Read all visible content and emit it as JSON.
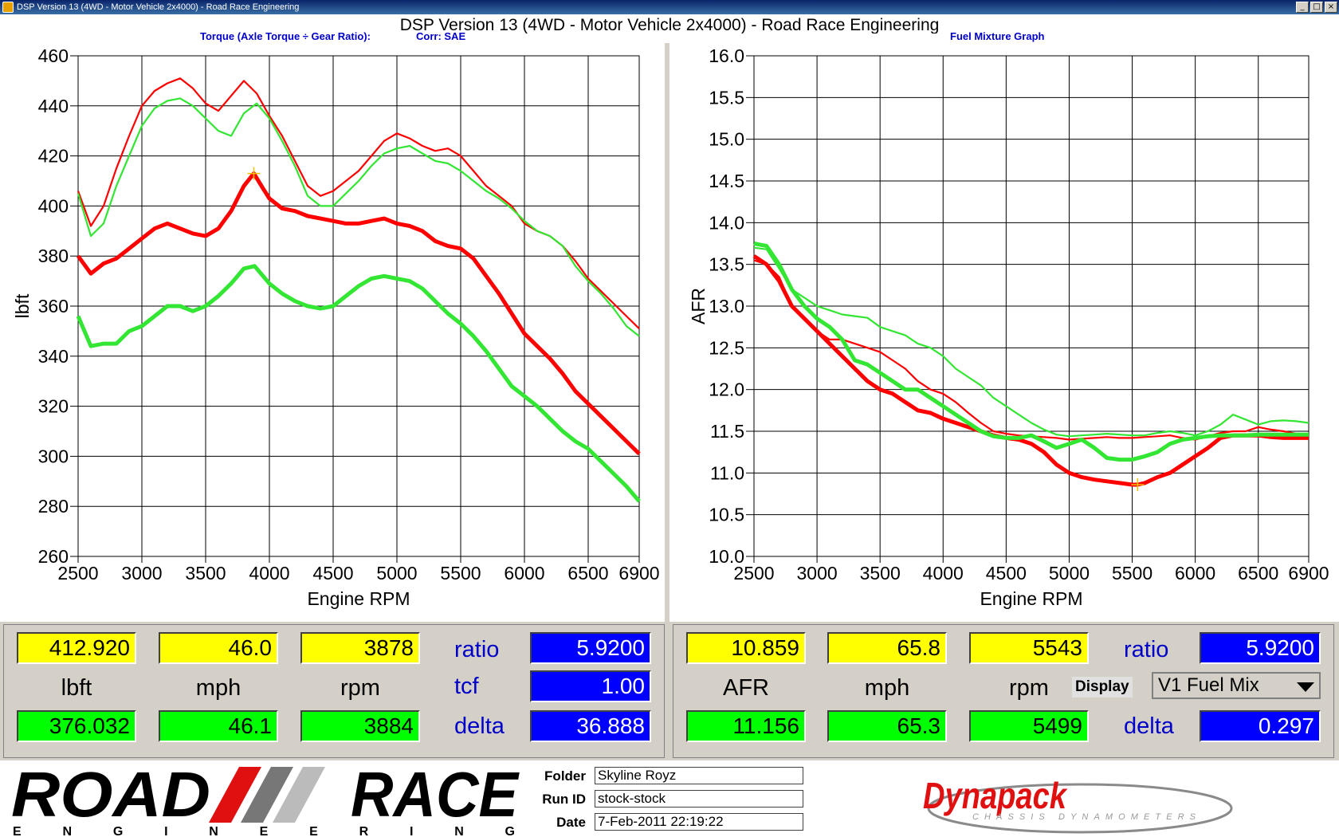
{
  "window": {
    "title": "DSP Version 13 (4WD - Motor Vehicle 2x4000) - Road Race Engineering",
    "controls": [
      "_",
      "□",
      "×"
    ]
  },
  "header": {
    "main_title": "DSP Version 13 (4WD - Motor Vehicle 2x4000) - Road Race Engineering",
    "left_subtitle": "Torque (Axle Torque ÷ Gear Ratio):",
    "left_corr": "Corr: SAE",
    "right_subtitle": "Fuel Mixture Graph"
  },
  "colors": {
    "run1": "#ff0000",
    "run2": "#33e633",
    "value_yellow": "#ffff00",
    "value_green": "#00ff00",
    "value_blue": "#0000ff",
    "label_blue": "#0000c8"
  },
  "chart_data": [
    {
      "type": "line",
      "ylabel": "lbft",
      "xlabel": "Engine RPM",
      "xlim": [
        2500,
        6900
      ],
      "ylim": [
        260,
        460
      ],
      "xticks": [
        "2500",
        "3000",
        "3500",
        "4000",
        "4500",
        "5000",
        "5500",
        "6000",
        "6500",
        "6900"
      ],
      "yticks": [
        "260",
        "280",
        "300",
        "320",
        "340",
        "360",
        "380",
        "400",
        "420",
        "440",
        "460"
      ],
      "grid": true,
      "series": [
        {
          "color": "red",
          "width": "thin",
          "x": [
            2500,
            2600,
            2700,
            2800,
            2900,
            3000,
            3100,
            3200,
            3300,
            3400,
            3500,
            3600,
            3700,
            3800,
            3900,
            4000,
            4100,
            4200,
            4300,
            4400,
            4500,
            4600,
            4700,
            4800,
            4900,
            5000,
            5100,
            5200,
            5300,
            5400,
            5500,
            5600,
            5700,
            5800,
            5900,
            6000,
            6100,
            6200,
            6300,
            6400,
            6500,
            6600,
            6700,
            6800,
            6900
          ],
          "y": [
            406,
            392,
            400,
            415,
            428,
            440,
            446,
            449,
            451,
            447,
            441,
            438,
            444,
            450,
            445,
            436,
            428,
            418,
            408,
            404,
            406,
            410,
            414,
            420,
            426,
            429,
            427,
            424,
            422,
            423,
            420,
            414,
            408,
            404,
            400,
            393,
            390,
            388,
            384,
            378,
            371,
            366,
            361,
            356,
            351
          ]
        },
        {
          "color": "green",
          "width": "thin",
          "x": [
            2500,
            2600,
            2700,
            2800,
            2900,
            3000,
            3100,
            3200,
            3300,
            3400,
            3500,
            3600,
            3700,
            3800,
            3900,
            4000,
            4100,
            4200,
            4300,
            4400,
            4500,
            4600,
            4700,
            4800,
            4900,
            5000,
            5100,
            5200,
            5300,
            5400,
            5500,
            5600,
            5700,
            5800,
            5900,
            6000,
            6100,
            6200,
            6300,
            6400,
            6500,
            6600,
            6700,
            6800,
            6900
          ],
          "y": [
            405,
            388,
            393,
            408,
            420,
            432,
            439,
            442,
            443,
            440,
            435,
            430,
            428,
            437,
            441,
            435,
            426,
            416,
            404,
            400,
            400,
            405,
            410,
            416,
            421,
            423,
            424,
            421,
            418,
            417,
            414,
            410,
            406,
            403,
            399,
            394,
            390,
            388,
            384,
            376,
            370,
            365,
            359,
            352,
            348
          ]
        },
        {
          "color": "red",
          "width": "thick",
          "x": [
            2500,
            2600,
            2700,
            2800,
            2900,
            3000,
            3100,
            3200,
            3300,
            3400,
            3500,
            3600,
            3700,
            3800,
            3878,
            3950,
            4000,
            4100,
            4200,
            4300,
            4400,
            4500,
            4600,
            4700,
            4800,
            4900,
            5000,
            5100,
            5200,
            5300,
            5400,
            5500,
            5600,
            5700,
            5800,
            5900,
            6000,
            6100,
            6200,
            6300,
            6400,
            6500,
            6600,
            6700,
            6800,
            6900
          ],
          "y": [
            380,
            373,
            377,
            379,
            383,
            387,
            391,
            393,
            391,
            389,
            388,
            391,
            398,
            408,
            413,
            407,
            403,
            399,
            398,
            396,
            395,
            394,
            393,
            393,
            394,
            395,
            393,
            392,
            390,
            386,
            384,
            383,
            379,
            372,
            365,
            357,
            349,
            344,
            339,
            333,
            326,
            321,
            316,
            311,
            306,
            301
          ]
        },
        {
          "color": "green",
          "width": "thick",
          "x": [
            2500,
            2600,
            2700,
            2800,
            2900,
            3000,
            3100,
            3200,
            3300,
            3400,
            3500,
            3600,
            3700,
            3800,
            3884,
            3950,
            4000,
            4100,
            4200,
            4300,
            4400,
            4500,
            4600,
            4700,
            4800,
            4900,
            5000,
            5100,
            5200,
            5300,
            5400,
            5500,
            5600,
            5700,
            5800,
            5900,
            6000,
            6100,
            6200,
            6300,
            6400,
            6500,
            6600,
            6700,
            6800,
            6900
          ],
          "y": [
            356,
            344,
            345,
            345,
            350,
            352,
            356,
            360,
            360,
            358,
            360,
            364,
            369,
            375,
            376,
            372,
            369,
            365,
            362,
            360,
            359,
            360,
            364,
            368,
            371,
            372,
            371,
            370,
            367,
            362,
            357,
            353,
            348,
            342,
            335,
            328,
            324,
            320,
            315,
            310,
            306,
            303,
            298,
            293,
            288,
            282
          ]
        }
      ],
      "cursor": {
        "x": 3878
      }
    },
    {
      "type": "line",
      "ylabel": "AFR",
      "xlabel": "Engine RPM",
      "xlim": [
        2500,
        6900
      ],
      "ylim": [
        10.0,
        16.0
      ],
      "xticks": [
        "2500",
        "3000",
        "3500",
        "4000",
        "4500",
        "5000",
        "5500",
        "6000",
        "6500",
        "6900"
      ],
      "yticks": [
        "10.0",
        "10.5",
        "11.0",
        "11.5",
        "12.0",
        "12.5",
        "13.0",
        "13.5",
        "14.0",
        "14.5",
        "15.0",
        "15.5",
        "16.0"
      ],
      "grid": true,
      "series": [
        {
          "color": "red",
          "width": "thin",
          "x": [
            2500,
            2600,
            2700,
            2800,
            2900,
            3000,
            3100,
            3200,
            3300,
            3400,
            3500,
            3600,
            3700,
            3800,
            3900,
            4000,
            4100,
            4200,
            4300,
            4400,
            4500,
            4600,
            4700,
            4800,
            4900,
            5000,
            5100,
            5200,
            5300,
            5400,
            5500,
            5600,
            5700,
            5800,
            5900,
            6000,
            6100,
            6200,
            6300,
            6400,
            6500,
            6600,
            6700,
            6800,
            6900
          ],
          "y": [
            13.55,
            13.5,
            13.35,
            13.0,
            12.85,
            12.7,
            12.6,
            12.6,
            12.55,
            12.5,
            12.45,
            12.35,
            12.25,
            12.1,
            12.0,
            11.95,
            11.85,
            11.72,
            11.6,
            11.5,
            11.47,
            11.45,
            11.44,
            11.43,
            11.42,
            11.4,
            11.41,
            11.42,
            11.43,
            11.42,
            11.42,
            11.43,
            11.44,
            11.45,
            11.42,
            11.4,
            11.44,
            11.48,
            11.5,
            11.5,
            11.55,
            11.52,
            11.5,
            11.47,
            11.45
          ]
        },
        {
          "color": "green",
          "width": "thin",
          "x": [
            2500,
            2600,
            2700,
            2800,
            2900,
            3000,
            3100,
            3200,
            3300,
            3400,
            3500,
            3600,
            3700,
            3800,
            3900,
            4000,
            4100,
            4200,
            4300,
            4400,
            4500,
            4600,
            4700,
            4800,
            4900,
            5000,
            5100,
            5200,
            5300,
            5400,
            5500,
            5600,
            5700,
            5800,
            5900,
            6000,
            6100,
            6200,
            6300,
            6400,
            6500,
            6600,
            6700,
            6800,
            6900
          ],
          "y": [
            13.7,
            13.68,
            13.45,
            13.2,
            13.1,
            13.0,
            12.95,
            12.9,
            12.88,
            12.86,
            12.75,
            12.7,
            12.65,
            12.55,
            12.5,
            12.4,
            12.25,
            12.15,
            12.05,
            11.9,
            11.8,
            11.7,
            11.6,
            11.52,
            11.46,
            11.44,
            11.45,
            11.46,
            11.47,
            11.46,
            11.45,
            11.45,
            11.48,
            11.5,
            11.48,
            11.45,
            11.5,
            11.58,
            11.7,
            11.64,
            11.58,
            11.62,
            11.63,
            11.62,
            11.6
          ]
        },
        {
          "color": "red",
          "width": "thick",
          "x": [
            2500,
            2600,
            2700,
            2800,
            2900,
            3000,
            3100,
            3200,
            3300,
            3400,
            3500,
            3600,
            3700,
            3800,
            3900,
            4000,
            4100,
            4200,
            4300,
            4400,
            4500,
            4600,
            4700,
            4800,
            4900,
            5000,
            5100,
            5200,
            5300,
            5400,
            5500,
            5543,
            5600,
            5700,
            5800,
            5900,
            6000,
            6100,
            6200,
            6300,
            6400,
            6500,
            6600,
            6700,
            6800,
            6900
          ],
          "y": [
            13.6,
            13.5,
            13.3,
            13.0,
            12.85,
            12.7,
            12.55,
            12.4,
            12.25,
            12.1,
            12.0,
            11.95,
            11.85,
            11.75,
            11.72,
            11.65,
            11.6,
            11.55,
            11.5,
            11.45,
            11.42,
            11.4,
            11.35,
            11.25,
            11.1,
            11.0,
            10.95,
            10.92,
            10.9,
            10.88,
            10.86,
            10.86,
            10.88,
            10.95,
            11.0,
            11.1,
            11.2,
            11.3,
            11.42,
            11.45,
            11.45,
            11.45,
            11.43,
            11.42,
            11.42,
            11.42
          ]
        },
        {
          "color": "green",
          "width": "thick",
          "x": [
            2500,
            2600,
            2700,
            2800,
            2900,
            3000,
            3100,
            3200,
            3300,
            3400,
            3500,
            3600,
            3700,
            3800,
            3900,
            4000,
            4100,
            4200,
            4300,
            4400,
            4500,
            4600,
            4700,
            4800,
            4900,
            5000,
            5100,
            5200,
            5300,
            5400,
            5499,
            5600,
            5700,
            5800,
            5900,
            6000,
            6100,
            6200,
            6300,
            6400,
            6500,
            6600,
            6700,
            6800,
            6900
          ],
          "y": [
            13.75,
            13.72,
            13.5,
            13.2,
            13.0,
            12.85,
            12.75,
            12.6,
            12.35,
            12.3,
            12.2,
            12.1,
            12.0,
            12.0,
            11.9,
            11.8,
            11.7,
            11.6,
            11.5,
            11.44,
            11.42,
            11.42,
            11.45,
            11.38,
            11.3,
            11.35,
            11.4,
            11.3,
            11.18,
            11.16,
            11.16,
            11.2,
            11.25,
            11.35,
            11.4,
            11.42,
            11.44,
            11.45,
            11.45,
            11.45,
            11.46,
            11.46,
            11.46,
            11.46,
            11.46
          ]
        }
      ],
      "cursor": {
        "x": 5543
      }
    }
  ],
  "readout_left": {
    "run1_value": "412.920",
    "run1_mph": "46.0",
    "run1_rpm": "3878",
    "run2_value": "376.032",
    "run2_mph": "46.1",
    "run2_rpm": "3884",
    "unit_value": "lbft",
    "unit_mph": "mph",
    "unit_rpm": "rpm",
    "ratio_label": "ratio",
    "ratio_value": "5.9200",
    "tcf_label": "tcf",
    "tcf_value": "1.00",
    "delta_label": "delta",
    "delta_value": "36.888"
  },
  "readout_right": {
    "run1_value": "10.859",
    "run1_mph": "65.8",
    "run1_rpm": "5543",
    "run2_value": "11.156",
    "run2_mph": "65.3",
    "run2_rpm": "5499",
    "unit_value": "AFR",
    "unit_mph": "mph",
    "unit_rpm": "rpm",
    "ratio_label": "ratio",
    "ratio_value": "5.9200",
    "display_label": "Display",
    "display_select": "V1 Fuel Mix",
    "delta_label": "delta",
    "delta_value": "0.297"
  },
  "footer": {
    "logo_road": "ROAD",
    "logo_race": "RACE",
    "logo_engineering": "ENGINEERING",
    "folder_label": "Folder",
    "folder_value": "Skyline Royz",
    "runid_label": "Run ID",
    "runid_value": "stock-stock",
    "date_label": "Date",
    "date_value": "7-Feb-2011 22:19:22",
    "dynapack_logo": "Dynapack",
    "dynapack_sub": "CHASSIS DYNAMOMETERS"
  }
}
